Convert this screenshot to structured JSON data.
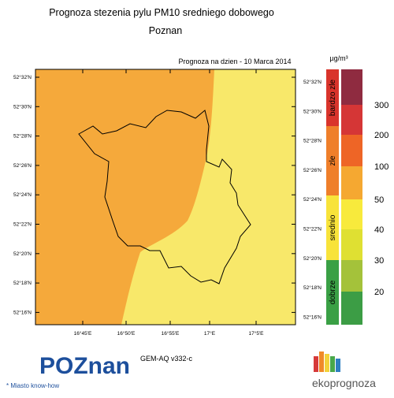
{
  "header": {
    "title": "Prognoza stezenia pylu PM10 sredniego dobowego",
    "subtitle": "Poznan"
  },
  "map": {
    "forecast_label": "Prognoza na dzien -  10 Marca 2014",
    "lat_labels": [
      "52°32'N",
      "52°30'N",
      "52°28'N",
      "52°26'N",
      "52°24'N",
      "52°22'N",
      "52°20'N",
      "52°18'N",
      "52°16'N"
    ],
    "lon_labels": [
      "16°45'E",
      "16°50'E",
      "16°55'E",
      "17°E",
      "17°5'E"
    ]
  },
  "legend": {
    "unit": "µg/m³",
    "categories": [
      "bardzo zle",
      "zle",
      "srednio",
      "dobrze"
    ],
    "levels": [
      300,
      200,
      100,
      50,
      40,
      30,
      20
    ]
  },
  "footer": {
    "model": "GEM-AQ v332-c",
    "logo_left": "POZnan",
    "logo_left_tagline": "* Miasto know-how",
    "logo_right": "ekoprognoza"
  }
}
